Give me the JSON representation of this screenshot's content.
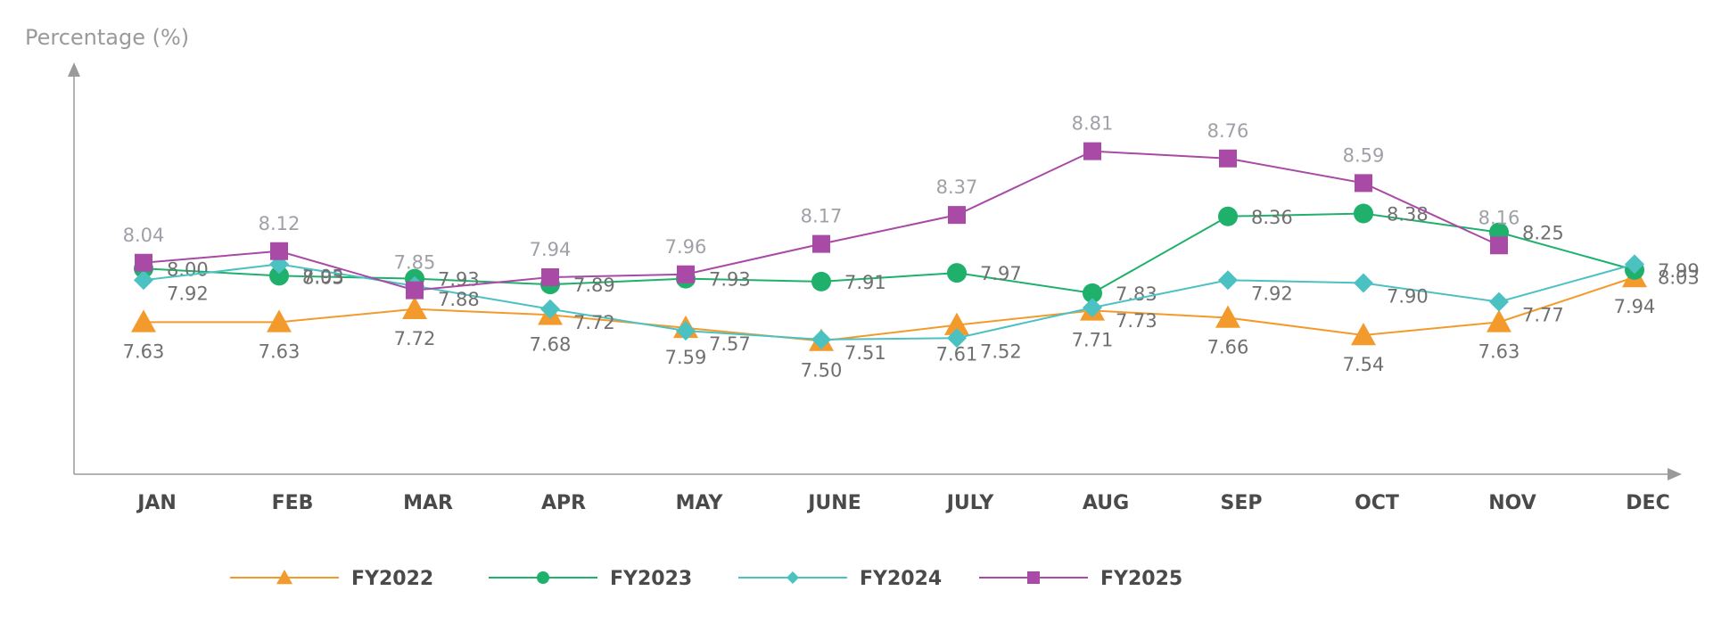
{
  "chart_data": {
    "type": "line",
    "ylabel": "Percentage (%)",
    "categories": [
      "JAN",
      "FEB",
      "MAR",
      "APR",
      "MAY",
      "JUNE",
      "JULY",
      "AUG",
      "SEP",
      "OCT",
      "NOV",
      "DEC"
    ],
    "ylim": [
      6.9,
      8.9
    ],
    "grid": false,
    "legend_position": "bottom",
    "series": [
      {
        "name": "FY2022",
        "color": "#f39a2c",
        "marker": "triangle",
        "values": [
          7.63,
          7.63,
          7.72,
          7.68,
          7.59,
          7.5,
          7.61,
          7.71,
          7.66,
          7.54,
          7.63,
          7.94
        ],
        "labels": [
          "7.63",
          "7.63",
          "7.72",
          "7.68",
          "7.59",
          "7.50",
          "7.61",
          "7.71",
          "7.66",
          "7.54",
          "7.63",
          "7.94"
        ],
        "label_color": "#707070"
      },
      {
        "name": "FY2023",
        "color": "#1fb06b",
        "marker": "circle",
        "values": [
          8.0,
          7.95,
          7.93,
          7.89,
          7.93,
          7.91,
          7.97,
          7.83,
          8.36,
          8.38,
          8.25,
          7.99
        ],
        "labels": [
          "8.00",
          "7.95",
          "7.93",
          "7.89",
          "7.93",
          "7.91",
          "7.97",
          "7.83",
          "8.36",
          "8.38",
          "8.25",
          "7.99"
        ],
        "label_color": "#707070"
      },
      {
        "name": "FY2024",
        "color": "#4cc1c2",
        "marker": "diamond",
        "values": [
          7.92,
          8.03,
          7.88,
          7.72,
          7.57,
          7.51,
          7.52,
          7.73,
          7.92,
          7.9,
          7.77,
          8.03
        ],
        "labels": [
          "7.92",
          "8.03",
          "7.88",
          "7.72",
          "7.57",
          "7.51",
          "7.52",
          "7.73",
          "7.92",
          "7.90",
          "7.77",
          "8.03"
        ],
        "label_color": "#707070"
      },
      {
        "name": "FY2025",
        "color": "#a84aa6",
        "marker": "square",
        "values": [
          8.04,
          8.12,
          7.85,
          7.94,
          7.96,
          8.17,
          8.37,
          8.81,
          8.76,
          8.59,
          8.16,
          null
        ],
        "labels": [
          "8.04",
          "8.12",
          "7.85",
          "7.94",
          "7.96",
          "8.17",
          "8.37",
          "8.81",
          "8.76",
          "8.59",
          "8.16",
          ""
        ],
        "label_color": "#a0a0a8"
      }
    ]
  }
}
